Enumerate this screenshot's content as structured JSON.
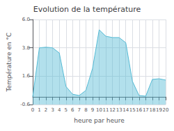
{
  "chart_data": {
    "type": "line",
    "title": "Evolution de la température",
    "xlabel": "heure par heure",
    "ylabel": "Température en °C",
    "color": "#55bbd5",
    "x": [
      0,
      1,
      2,
      3,
      4,
      5,
      6,
      7,
      8,
      9,
      10,
      11,
      12,
      13,
      14,
      15,
      16,
      17,
      18,
      19,
      20
    ],
    "values": [
      0.0,
      3.8,
      3.85,
      3.8,
      3.4,
      0.8,
      0.2,
      0.1,
      0.5,
      2.2,
      5.2,
      4.7,
      4.6,
      4.6,
      4.2,
      1.2,
      0.1,
      0.05,
      1.35,
      1.4,
      1.3
    ],
    "xlim": [
      0,
      20
    ],
    "xticks": [
      0,
      1,
      2,
      3,
      4,
      5,
      6,
      7,
      8,
      9,
      10,
      11,
      12,
      13,
      14,
      15,
      16,
      17,
      18,
      19,
      20
    ],
    "ylim": [
      -0.6,
      6.0
    ],
    "yticks": [
      -0.6,
      1.6,
      3.8,
      {
        "value": 6.0,
        "label": "6.0"
      }
    ],
    "grid": true
  }
}
